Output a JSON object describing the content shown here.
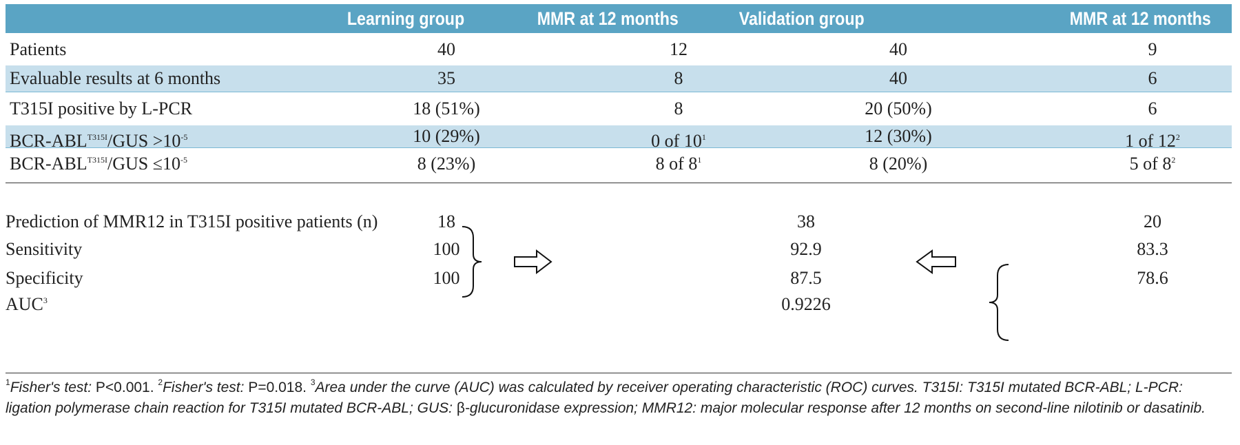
{
  "header": {
    "col0": "",
    "col1": "Learning group",
    "col2": "MMR at 12 months",
    "col3": "Validation group",
    "col4": "MMR at 12 months"
  },
  "rows": [
    {
      "label": "Patients",
      "lg": "40",
      "lg_mmr": "12",
      "vg": "40",
      "vg_mmr": "9"
    },
    {
      "label": "Evaluable results at 6 months",
      "lg": "35",
      "lg_mmr": "8",
      "vg": "40",
      "vg_mmr": "6"
    },
    {
      "label": "T315I positive by L-PCR",
      "lg": "18 (51%)",
      "lg_mmr": "8",
      "vg": "20 (50%)",
      "vg_mmr": "6"
    },
    {
      "label_a": "BCR-ABL",
      "label_sup1": "T315I",
      "label_b": "/GUS >10",
      "label_sup2": "-5",
      "lg": "10 (29%)",
      "lg_mmr": "0 of 10",
      "lg_mmr_sup": "1",
      "vg": "12 (30%)",
      "vg_mmr": "1 of 12",
      "vg_mmr_sup": "2"
    },
    {
      "label_a": "BCR-ABL",
      "label_sup1": "T315I",
      "label_b": "/GUS ≤10",
      "label_sup2": "-5",
      "lg": "8 (23%)",
      "lg_mmr": "8 of 8",
      "lg_mmr_sup": "1",
      "vg": "8 (20%)",
      "vg_mmr": "5 of 8",
      "vg_mmr_sup": "2"
    }
  ],
  "prediction": {
    "rows": [
      {
        "label": "Prediction of MMR12 in T315I positive patients (n)",
        "learning": "18",
        "combined": "38",
        "validation": "20"
      },
      {
        "label": "Sensitivity",
        "learning": "100",
        "combined": "92.9",
        "validation": "83.3"
      },
      {
        "label": "Specificity",
        "learning": "100",
        "combined": "87.5",
        "validation": "78.6"
      }
    ],
    "auc_label": "AUC",
    "auc_sup": "3",
    "auc_value": "0.9226"
  },
  "footnote": {
    "s1": "1",
    "t1": "Fisher's test: ",
    "v1": "P<0.001. ",
    "s2": "2",
    "t2": "Fisher's test: ",
    "v2": "P=0.018. ",
    "s3": "3",
    "t3": "Area under the curve (AUC) was calculated by receiver operating characteristic (ROC) curves. T315I: T315I mutated BCR-ABL; L-PCR: ligation polymerase chain reaction for T315I mutated BCR-ABL; GUS: ",
    "beta": "β",
    "t4": "-glucuronidase expression; MMR12: major molecular response after 12 months on second-line nilotinib or dasatinib."
  },
  "colors": {
    "header_bg": "#5aa4c4",
    "alt_row_bg": "#c7dfec"
  }
}
